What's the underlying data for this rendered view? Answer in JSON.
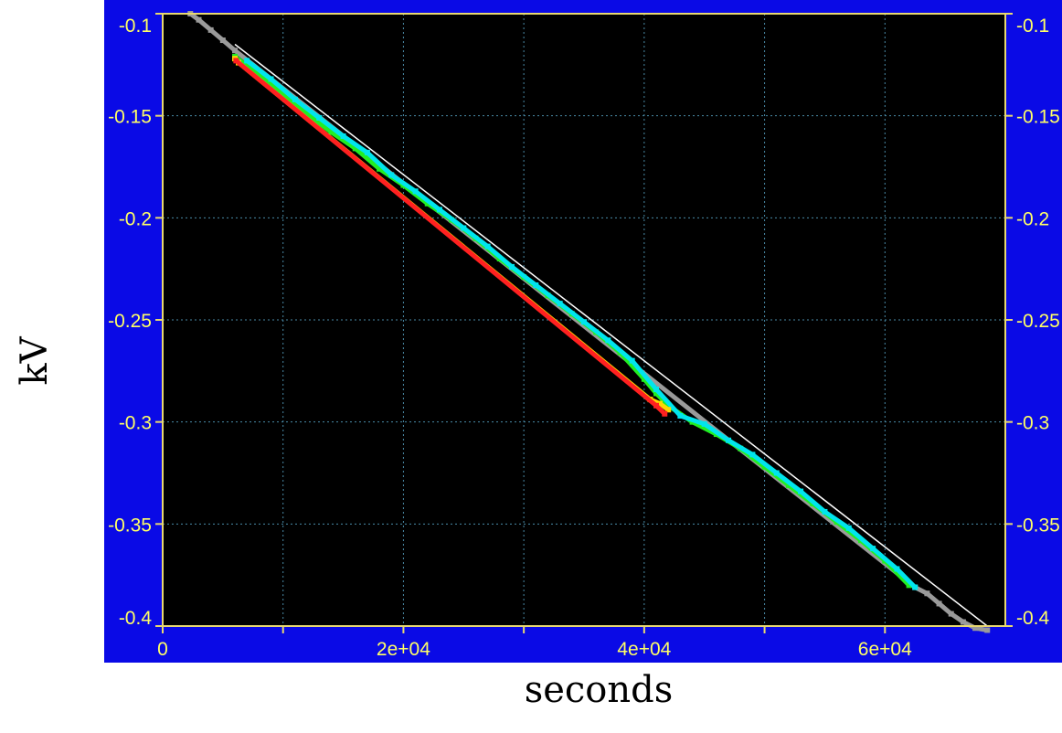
{
  "chart_data": {
    "type": "scatter",
    "title": "",
    "xlabel": "seconds",
    "ylabel": "kV",
    "xlim": [
      0,
      70000
    ],
    "ylim": [
      -0.4,
      -0.1
    ],
    "grid": true,
    "x_ticks": [
      0,
      10000,
      20000,
      30000,
      40000,
      50000,
      60000
    ],
    "x_tick_labels": [
      "0",
      "",
      "2e+04",
      "",
      "4e+04",
      "",
      "6e+04"
    ],
    "y_ticks": [
      -0.1,
      -0.15,
      -0.2,
      -0.25,
      -0.3,
      -0.35,
      -0.4
    ],
    "y_tick_labels": [
      "-0.1",
      "-0.15",
      "-0.2",
      "-0.25",
      "-0.3",
      "-0.35",
      "-0.4"
    ],
    "series": [
      {
        "color": "#9a9a9a",
        "x": [
          2300,
          3000,
          4000,
          5000,
          6000,
          62500,
          63500,
          64500,
          65500,
          66500,
          67500,
          68500
        ],
        "y": [
          -0.1,
          -0.103,
          -0.108,
          -0.113,
          -0.118,
          -0.381,
          -0.384,
          -0.389,
          -0.394,
          -0.398,
          -0.401,
          -0.402
        ]
      },
      {
        "color": "#22ee22",
        "x": [
          6000,
          8000,
          10000,
          12000,
          14000,
          16000,
          18000,
          20000,
          22000,
          24000,
          26000,
          28000,
          30000,
          32000,
          34000,
          36000,
          38000,
          40000,
          41000,
          42000,
          44000,
          46000,
          48000,
          50000,
          52000,
          54000,
          56000,
          58000,
          60000,
          62000
        ],
        "y": [
          -0.121,
          -0.13,
          -0.139,
          -0.149,
          -0.158,
          -0.166,
          -0.176,
          -0.184,
          -0.193,
          -0.201,
          -0.21,
          -0.22,
          -0.229,
          -0.238,
          -0.247,
          -0.256,
          -0.266,
          -0.279,
          -0.286,
          -0.292,
          -0.3,
          -0.306,
          -0.313,
          -0.322,
          -0.331,
          -0.34,
          -0.349,
          -0.358,
          -0.368,
          -0.38
        ]
      },
      {
        "color": "#00e5ee",
        "x": [
          7000,
          9000,
          11000,
          13000,
          15000,
          17000,
          19000,
          21000,
          23000,
          25000,
          27000,
          29000,
          31000,
          33000,
          35000,
          37000,
          39000,
          41000,
          43000,
          45000,
          47000,
          49000,
          51000,
          53000,
          55000,
          57000,
          59000,
          61000,
          62500
        ],
        "y": [
          -0.123,
          -0.132,
          -0.142,
          -0.151,
          -0.16,
          -0.168,
          -0.179,
          -0.187,
          -0.196,
          -0.205,
          -0.214,
          -0.224,
          -0.233,
          -0.242,
          -0.251,
          -0.26,
          -0.27,
          -0.284,
          -0.297,
          -0.301,
          -0.309,
          -0.316,
          -0.325,
          -0.334,
          -0.344,
          -0.352,
          -0.362,
          -0.372,
          -0.381
        ]
      },
      {
        "color": "#ffd700",
        "x": [
          6000,
          6300,
          40500,
          41300,
          42000
        ],
        "y": [
          -0.122,
          -0.124,
          -0.289,
          -0.291,
          -0.294
        ]
      },
      {
        "color": "#ff2020",
        "x": [
          6100,
          41000,
          41700
        ],
        "y": [
          -0.123,
          -0.292,
          -0.296
        ]
      }
    ],
    "fit_line": {
      "color": "#ffffff",
      "x": [
        6000,
        68500
      ],
      "y": [
        -0.115,
        -0.4
      ]
    }
  }
}
